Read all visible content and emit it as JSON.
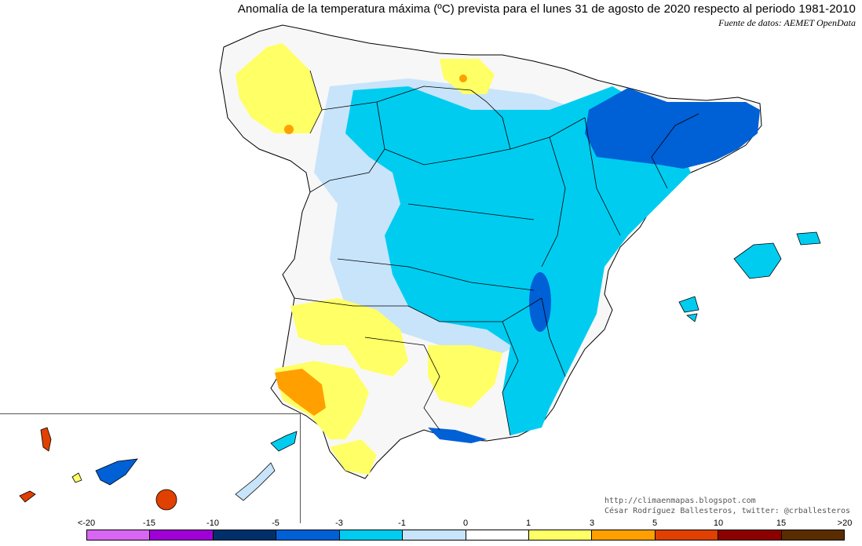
{
  "title": "Anomalía de la temperatura máxima (ºC) prevista para el lunes 31 de agosto de 2020 respecto al periodo 1981-2010",
  "source": "Fuente de datos: AEMET OpenData",
  "credits": {
    "url": "http://climaenmapas.blogspot.com",
    "author": "César Rodríguez Ballesteros, twitter: @crballesteros"
  },
  "legend": {
    "labels": [
      "<-20",
      "-15",
      "-10",
      "-5",
      "-3",
      "-1",
      "0",
      "1",
      "3",
      "5",
      "10",
      "15",
      ">20"
    ],
    "colors": [
      "#d966f2",
      "#a000d6",
      "#00306b",
      "#0060d6",
      "#00ccf0",
      "#c8e4fa",
      "#ffffff",
      "#ffff66",
      "#ffa000",
      "#e04000",
      "#8c0000",
      "#5a2d00"
    ]
  },
  "map_colors": {
    "ocean": "#ffffff",
    "borders": "#000000",
    "inset_frame": "#555555"
  }
}
